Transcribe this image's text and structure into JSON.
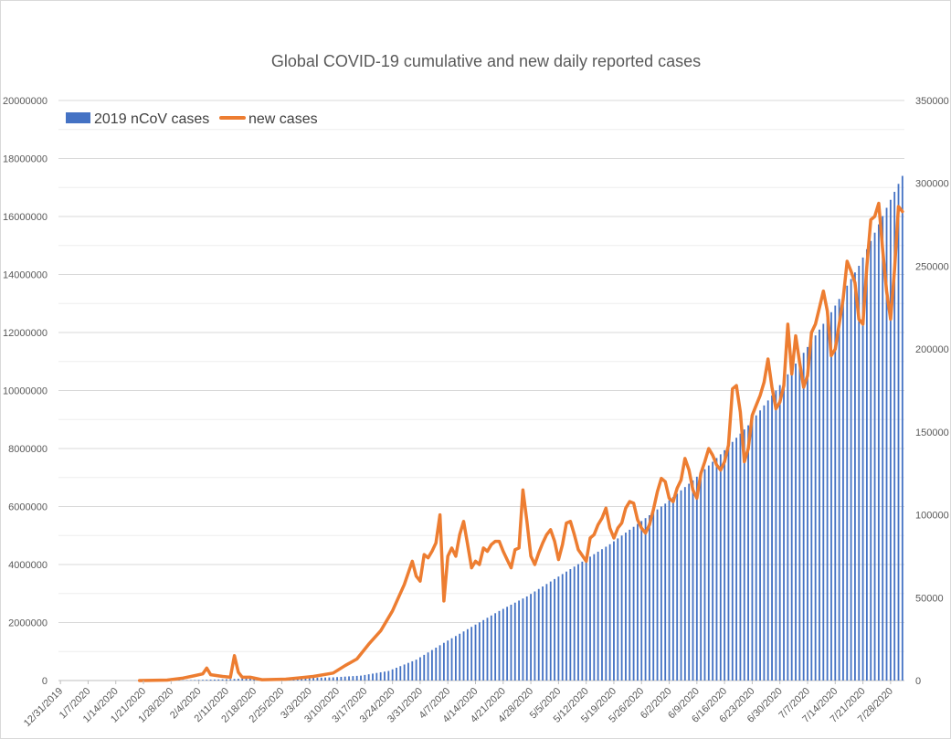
{
  "chart_data": {
    "type": "bar+line",
    "title": "Global COVID-19 cumulative and new daily reported cases",
    "start_date": "2019-12-31",
    "end_date": "2020-07-31",
    "x_tick_labels": [
      "12/31/2019",
      "1/7/2020",
      "1/14/2020",
      "1/21/2020",
      "1/28/2020",
      "2/4/2020",
      "2/11/2020",
      "2/18/2020",
      "2/25/2020",
      "3/3/2020",
      "3/10/2020",
      "3/17/2020",
      "3/24/2020",
      "3/31/2020",
      "4/7/2020",
      "4/14/2020",
      "4/21/2020",
      "4/28/2020",
      "5/5/2020",
      "5/12/2020",
      "5/19/2020",
      "5/26/2020",
      "6/2/2020",
      "6/9/2020",
      "6/16/2020",
      "6/23/2020",
      "6/30/2020",
      "7/7/2020",
      "7/14/2020",
      "7/21/2020",
      "7/28/2020"
    ],
    "y_left": {
      "min": 0,
      "max": 20000000,
      "step": 2000000,
      "tick_labels": [
        "0",
        "2000000",
        "4000000",
        "6000000",
        "8000000",
        "10000000",
        "12000000",
        "14000000",
        "16000000",
        "18000000",
        "20000000"
      ]
    },
    "y_right": {
      "min": 0,
      "max": 350000,
      "step": 50000,
      "tick_labels": [
        "0",
        "50000",
        "100000",
        "150000",
        "200000",
        "250000",
        "300000",
        "350000"
      ]
    },
    "grid": true,
    "legend": {
      "position": "top-left",
      "entries": [
        "2019 nCoV cases",
        "new cases"
      ]
    },
    "series": [
      {
        "name": "2019 nCoV cases",
        "type": "bar",
        "axis": "left",
        "color": "#4472c4",
        "keyframes": [
          [
            "2019-12-31",
            30
          ],
          [
            "2020-01-10",
            60
          ],
          [
            "2020-01-20",
            300
          ],
          [
            "2020-01-25",
            2000
          ],
          [
            "2020-02-01",
            12000
          ],
          [
            "2020-02-10",
            40000
          ],
          [
            "2020-02-17",
            71000
          ],
          [
            "2020-02-24",
            79000
          ],
          [
            "2020-03-02",
            89000
          ],
          [
            "2020-03-09",
            110000
          ],
          [
            "2020-03-16",
            170000
          ],
          [
            "2020-03-23",
            330000
          ],
          [
            "2020-03-30",
            720000
          ],
          [
            "2020-04-06",
            1300000
          ],
          [
            "2020-04-13",
            1850000
          ],
          [
            "2020-04-20",
            2400000
          ],
          [
            "2020-04-27",
            2900000
          ],
          [
            "2020-05-04",
            3500000
          ],
          [
            "2020-05-11",
            4100000
          ],
          [
            "2020-05-18",
            4700000
          ],
          [
            "2020-05-25",
            5400000
          ],
          [
            "2020-06-01",
            6100000
          ],
          [
            "2020-06-08",
            6900000
          ],
          [
            "2020-06-15",
            7800000
          ],
          [
            "2020-06-22",
            8800000
          ],
          [
            "2020-06-29",
            10000000
          ],
          [
            "2020-07-06",
            11300000
          ],
          [
            "2020-07-13",
            12700000
          ],
          [
            "2020-07-20",
            14300000
          ],
          [
            "2020-07-27",
            16300000
          ],
          [
            "2020-07-31",
            17400000
          ]
        ]
      },
      {
        "name": "new cases",
        "type": "line",
        "axis": "right",
        "color": "#ed7d31",
        "keyframes": [
          [
            "2020-01-20",
            0
          ],
          [
            "2020-01-27",
            300
          ],
          [
            "2020-01-31",
            1500
          ],
          [
            "2020-02-03",
            3000
          ],
          [
            "2020-02-05",
            4000
          ],
          [
            "2020-02-06",
            7500
          ],
          [
            "2020-02-07",
            3500
          ],
          [
            "2020-02-10",
            2500
          ],
          [
            "2020-02-12",
            2000
          ],
          [
            "2020-02-13",
            15000
          ],
          [
            "2020-02-14",
            5000
          ],
          [
            "2020-02-15",
            2000
          ],
          [
            "2020-02-17",
            2000
          ],
          [
            "2020-02-20",
            500
          ],
          [
            "2020-02-26",
            800
          ],
          [
            "2020-02-29",
            1500
          ],
          [
            "2020-03-04",
            2500
          ],
          [
            "2020-03-09",
            4500
          ],
          [
            "2020-03-12",
            9000
          ],
          [
            "2020-03-15",
            13000
          ],
          [
            "2020-03-18",
            22000
          ],
          [
            "2020-03-21",
            30000
          ],
          [
            "2020-03-24",
            42000
          ],
          [
            "2020-03-27",
            58000
          ],
          [
            "2020-03-29",
            72000
          ],
          [
            "2020-03-30",
            63000
          ],
          [
            "2020-03-31",
            60000
          ],
          [
            "2020-04-01",
            76000
          ],
          [
            "2020-04-02",
            74000
          ],
          [
            "2020-04-03",
            78000
          ],
          [
            "2020-04-04",
            83000
          ],
          [
            "2020-04-05",
            100000
          ],
          [
            "2020-04-06",
            48000
          ],
          [
            "2020-04-07",
            75000
          ],
          [
            "2020-04-08",
            80000
          ],
          [
            "2020-04-09",
            75000
          ],
          [
            "2020-04-10",
            88000
          ],
          [
            "2020-04-11",
            96000
          ],
          [
            "2020-04-12",
            82000
          ],
          [
            "2020-04-13",
            68000
          ],
          [
            "2020-04-14",
            72000
          ],
          [
            "2020-04-15",
            70000
          ],
          [
            "2020-04-16",
            80000
          ],
          [
            "2020-04-17",
            78000
          ],
          [
            "2020-04-18",
            82000
          ],
          [
            "2020-04-19",
            84000
          ],
          [
            "2020-04-20",
            84000
          ],
          [
            "2020-04-21",
            78000
          ],
          [
            "2020-04-22",
            73000
          ],
          [
            "2020-04-23",
            68000
          ],
          [
            "2020-04-24",
            79000
          ],
          [
            "2020-04-25",
            80000
          ],
          [
            "2020-04-26",
            115000
          ],
          [
            "2020-04-27",
            96000
          ],
          [
            "2020-04-28",
            75000
          ],
          [
            "2020-04-29",
            70000
          ],
          [
            "2020-04-30",
            77000
          ],
          [
            "2020-05-01",
            83000
          ],
          [
            "2020-05-02",
            88000
          ],
          [
            "2020-05-03",
            91000
          ],
          [
            "2020-05-04",
            84000
          ],
          [
            "2020-05-05",
            73000
          ],
          [
            "2020-05-06",
            82000
          ],
          [
            "2020-05-07",
            95000
          ],
          [
            "2020-05-08",
            96000
          ],
          [
            "2020-05-09",
            88000
          ],
          [
            "2020-05-10",
            79000
          ],
          [
            "2020-05-12",
            72000
          ],
          [
            "2020-05-13",
            86000
          ],
          [
            "2020-05-14",
            88000
          ],
          [
            "2020-05-15",
            94000
          ],
          [
            "2020-05-16",
            98000
          ],
          [
            "2020-05-17",
            104000
          ],
          [
            "2020-05-18",
            92000
          ],
          [
            "2020-05-19",
            86000
          ],
          [
            "2020-05-20",
            92000
          ],
          [
            "2020-05-21",
            95000
          ],
          [
            "2020-05-22",
            104000
          ],
          [
            "2020-05-23",
            108000
          ],
          [
            "2020-05-24",
            107000
          ],
          [
            "2020-05-25",
            97000
          ],
          [
            "2020-05-26",
            92000
          ],
          [
            "2020-05-27",
            89000
          ],
          [
            "2020-05-28",
            94000
          ],
          [
            "2020-05-29",
            103000
          ],
          [
            "2020-05-30",
            114000
          ],
          [
            "2020-05-31",
            122000
          ],
          [
            "2020-06-01",
            120000
          ],
          [
            "2020-06-02",
            110000
          ],
          [
            "2020-06-03",
            108000
          ],
          [
            "2020-06-04",
            116000
          ],
          [
            "2020-06-05",
            121000
          ],
          [
            "2020-06-06",
            134000
          ],
          [
            "2020-06-07",
            127000
          ],
          [
            "2020-06-08",
            115000
          ],
          [
            "2020-06-09",
            110000
          ],
          [
            "2020-06-10",
            125000
          ],
          [
            "2020-06-11",
            132000
          ],
          [
            "2020-06-12",
            140000
          ],
          [
            "2020-06-13",
            136000
          ],
          [
            "2020-06-14",
            130000
          ],
          [
            "2020-06-15",
            127000
          ],
          [
            "2020-06-16",
            132000
          ],
          [
            "2020-06-17",
            142000
          ],
          [
            "2020-06-18",
            176000
          ],
          [
            "2020-06-19",
            178000
          ],
          [
            "2020-06-20",
            162000
          ],
          [
            "2020-06-21",
            132000
          ],
          [
            "2020-06-22",
            140000
          ],
          [
            "2020-06-23",
            160000
          ],
          [
            "2020-06-24",
            166000
          ],
          [
            "2020-06-25",
            172000
          ],
          [
            "2020-06-26",
            180000
          ],
          [
            "2020-06-27",
            194000
          ],
          [
            "2020-06-28",
            177000
          ],
          [
            "2020-06-29",
            164000
          ],
          [
            "2020-06-30",
            168000
          ],
          [
            "2020-07-01",
            178000
          ],
          [
            "2020-07-02",
            215000
          ],
          [
            "2020-07-03",
            185000
          ],
          [
            "2020-07-04",
            208000
          ],
          [
            "2020-07-05",
            192000
          ],
          [
            "2020-07-06",
            177000
          ],
          [
            "2020-07-07",
            184000
          ],
          [
            "2020-07-08",
            210000
          ],
          [
            "2020-07-09",
            215000
          ],
          [
            "2020-07-10",
            225000
          ],
          [
            "2020-07-11",
            235000
          ],
          [
            "2020-07-12",
            223000
          ],
          [
            "2020-07-13",
            196000
          ],
          [
            "2020-07-14",
            200000
          ],
          [
            "2020-07-15",
            215000
          ],
          [
            "2020-07-16",
            230000
          ],
          [
            "2020-07-17",
            253000
          ],
          [
            "2020-07-18",
            247000
          ],
          [
            "2020-07-19",
            240000
          ],
          [
            "2020-07-20",
            218000
          ],
          [
            "2020-07-21",
            215000
          ],
          [
            "2020-07-22",
            250000
          ],
          [
            "2020-07-23",
            278000
          ],
          [
            "2020-07-24",
            280000
          ],
          [
            "2020-07-25",
            288000
          ],
          [
            "2020-07-26",
            260000
          ],
          [
            "2020-07-27",
            235000
          ],
          [
            "2020-07-28",
            218000
          ],
          [
            "2020-07-29",
            248000
          ],
          [
            "2020-07-30",
            286000
          ],
          [
            "2020-07-31",
            283000
          ]
        ]
      }
    ]
  }
}
